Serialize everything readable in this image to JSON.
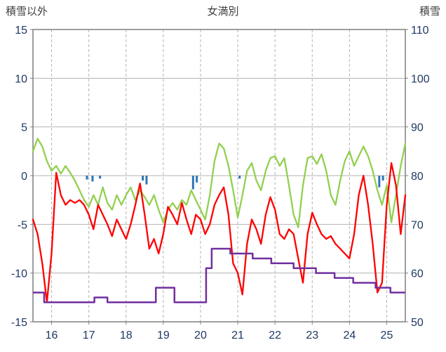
{
  "chart_data": {
    "type": "line",
    "title": "女満別",
    "left_axis": {
      "label": "積雪以外",
      "min": -15,
      "max": 15,
      "ticks": [
        15,
        10,
        5,
        0,
        -5,
        -10,
        -15
      ]
    },
    "right_axis": {
      "label": "積雪",
      "min": 50,
      "max": 110,
      "ticks": [
        110,
        100,
        90,
        80,
        70,
        60,
        50
      ]
    },
    "x_range": [
      15.5,
      25.5
    ],
    "x_ticks": [
      16,
      17,
      18,
      19,
      20,
      21,
      22,
      23,
      24,
      25
    ],
    "grid": {
      "horizontal": "solid",
      "vertical": "dashed"
    },
    "legend_position": "none",
    "colors": {
      "red_line": "#ff0000",
      "green_line": "#92d050",
      "purple_line": "#7030a0",
      "blue_bars": "#2e75b6",
      "grid": "#b3b3b3",
      "border": "#7f7f7f",
      "tick_label": "#1f3864",
      "header": "#3f3f3f"
    },
    "x_step": 0.125,
    "series": [
      {
        "name": "green-line",
        "axis": "left",
        "kind": "line",
        "color": "#92d050",
        "x_start": 15.5,
        "y": [
          2.5,
          3.8,
          3.0,
          1.5,
          0.5,
          1.0,
          0.2,
          1.0,
          0.3,
          -0.5,
          -1.5,
          -2.5,
          -3.2,
          -2.0,
          -3.0,
          -1.2,
          -2.8,
          -3.5,
          -2.0,
          -3.0,
          -2.0,
          -1.2,
          -2.5,
          -1.5,
          -2.2,
          -3.0,
          -2.0,
          -3.5,
          -4.8,
          -3.5,
          -2.8,
          -3.5,
          -2.5,
          -3.0,
          -1.5,
          -2.5,
          -3.5,
          -4.5,
          -2.0,
          1.5,
          3.3,
          2.8,
          1.0,
          -1.5,
          -4.3,
          -2.0,
          0.5,
          1.3,
          -0.5,
          -1.5,
          0.5,
          1.8,
          2.0,
          1.0,
          1.8,
          -1.0,
          -4.0,
          -5.3,
          -1.0,
          1.8,
          2.0,
          1.2,
          2.2,
          0.5,
          -2.0,
          -3.0,
          -0.5,
          1.5,
          2.5,
          1.0,
          2.0,
          3.0,
          2.0,
          0.5,
          -1.5,
          -3.0,
          -1.0,
          -4.8,
          -2.0,
          1.0,
          3.3
        ]
      },
      {
        "name": "red-line",
        "axis": "left",
        "kind": "line",
        "color": "#ff0000",
        "x_start": 15.5,
        "y": [
          -4.5,
          -6.0,
          -9.0,
          -13.0,
          -8.0,
          0.3,
          -2.0,
          -3.0,
          -2.5,
          -2.8,
          -2.5,
          -3.0,
          -4.0,
          -5.5,
          -3.0,
          -4.0,
          -5.0,
          -6.2,
          -4.5,
          -5.5,
          -6.5,
          -5.0,
          -3.0,
          -0.8,
          -4.0,
          -7.5,
          -6.5,
          -8.0,
          -6.0,
          -3.2,
          -4.0,
          -5.0,
          -2.8,
          -4.5,
          -6.0,
          -4.0,
          -4.5,
          -6.0,
          -5.0,
          -3.0,
          -2.0,
          -1.2,
          -4.0,
          -9.0,
          -10.0,
          -12.2,
          -7.0,
          -4.5,
          -5.5,
          -7.0,
          -4.0,
          -2.2,
          -3.5,
          -6.0,
          -6.5,
          -5.5,
          -6.0,
          -8.5,
          -11.0,
          -6.0,
          -3.8,
          -5.0,
          -6.0,
          -6.5,
          -6.2,
          -7.0,
          -7.5,
          -8.0,
          -8.5,
          -6.0,
          -2.0,
          0.0,
          -3.0,
          -7.0,
          -12.0,
          -11.0,
          -3.0,
          1.3,
          -1.0,
          -6.0,
          -2.0
        ]
      },
      {
        "name": "purple-step-line",
        "axis": "right",
        "kind": "step",
        "color": "#7030a0",
        "x": [
          15.5,
          15.8,
          17.15,
          17.5,
          18.8,
          19.3,
          20.15,
          20.3,
          20.8,
          21.4,
          21.9,
          22.5,
          23.1,
          23.6,
          24.1,
          24.7,
          25.1
        ],
        "y": [
          56,
          54,
          55,
          54,
          57,
          54,
          61,
          65,
          64,
          63,
          62,
          61,
          60,
          59,
          58,
          57,
          56
        ]
      },
      {
        "name": "blue-bars",
        "axis": "left",
        "kind": "bar",
        "color": "#2e75b6",
        "x": [
          16.95,
          17.1,
          17.3,
          18.45,
          18.55,
          19.8,
          19.9,
          21.05,
          24.8,
          24.9
        ],
        "y": [
          -0.4,
          -0.6,
          -0.3,
          -0.5,
          -0.9,
          -1.4,
          -0.7,
          -0.3,
          -1.2,
          -0.5
        ]
      }
    ]
  }
}
